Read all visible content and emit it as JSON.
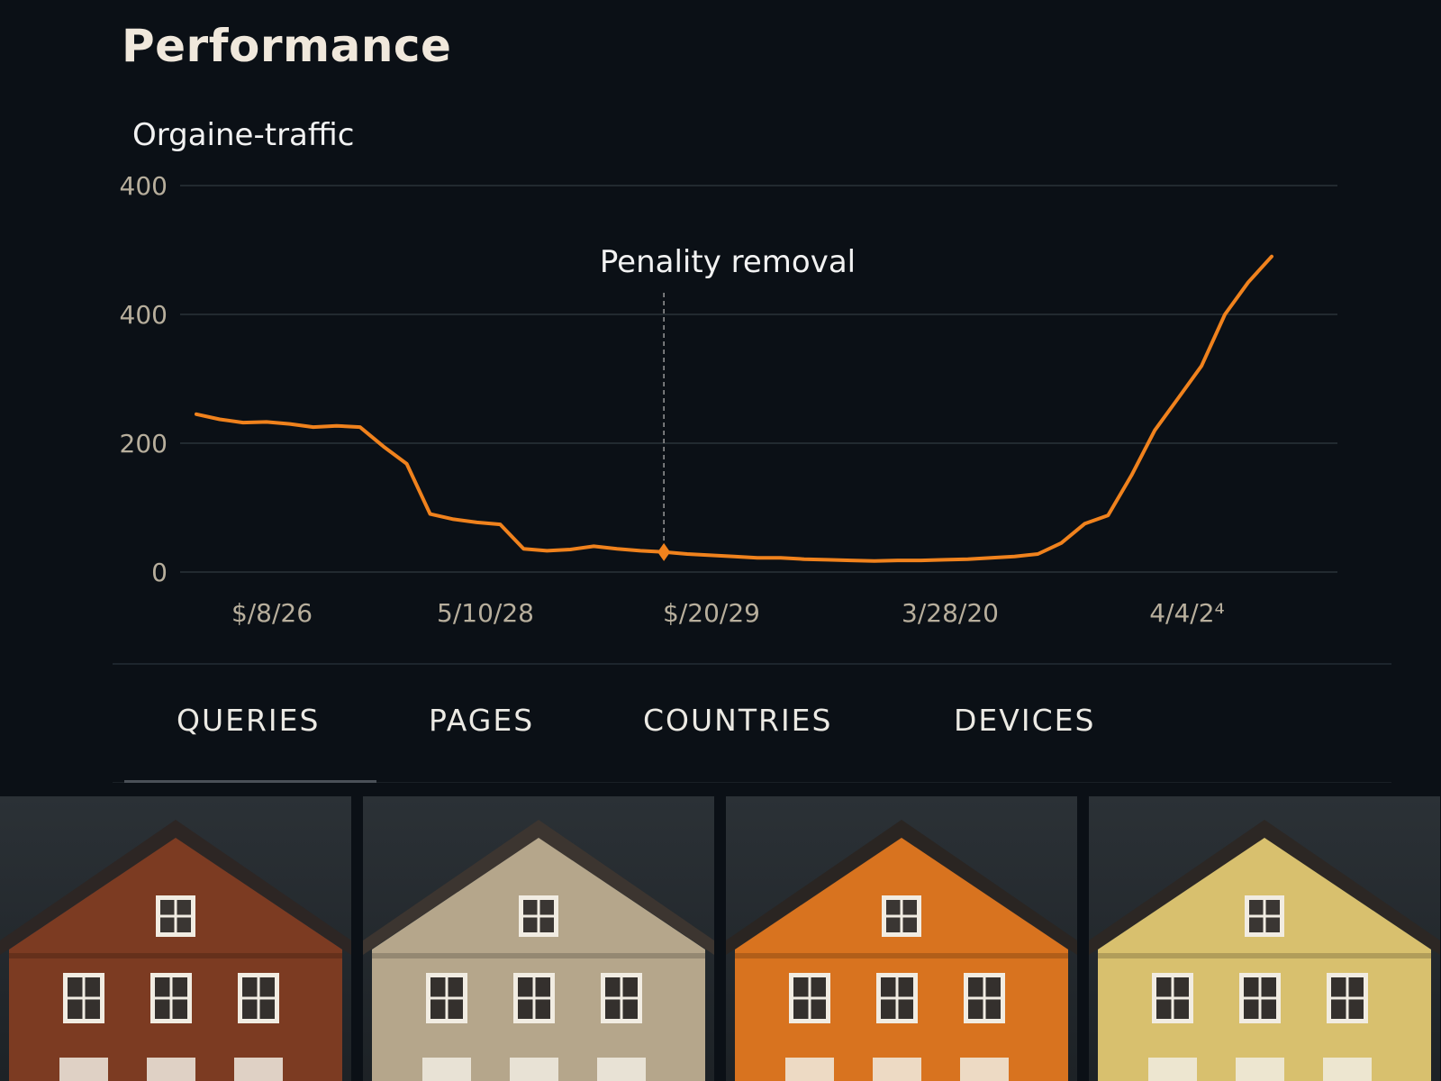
{
  "page": {
    "title": "Performance"
  },
  "chart_data": {
    "type": "line",
    "title": "Orgaine-traffic",
    "line_color": "#f0821d",
    "grid": true,
    "y_tick_labels": [
      "400",
      "400",
      "200",
      "0"
    ],
    "x_tick_labels": [
      "$/8/26",
      "5/10/28",
      "$/20/29",
      "3/28/20",
      "4/4/2⁴"
    ],
    "annotation": {
      "label": "Penality removal",
      "x_index": 20
    },
    "series": [
      {
        "values": [
          245,
          237,
          232,
          233,
          230,
          225,
          227,
          225,
          195,
          168,
          90,
          82,
          77,
          74,
          36,
          33,
          35,
          40,
          36,
          33,
          31,
          28,
          26,
          24,
          22,
          22,
          20,
          19,
          18,
          17,
          18,
          18,
          19,
          20,
          22,
          24,
          28,
          45,
          75,
          88,
          150,
          220,
          270,
          320,
          400,
          450,
          490
        ]
      }
    ]
  },
  "tabs": [
    "QUERIES",
    "PAGES",
    "COUNTRIES",
    "DEVICES"
  ],
  "houses": [
    {
      "facade": "#7c3b22",
      "roof": "#2d2624"
    },
    {
      "facade": "#b5a68b",
      "roof": "#3c3530"
    },
    {
      "facade": "#d8731f",
      "roof": "#2a2522"
    },
    {
      "facade": "#d8c06e",
      "roof": "#2c2724"
    }
  ]
}
